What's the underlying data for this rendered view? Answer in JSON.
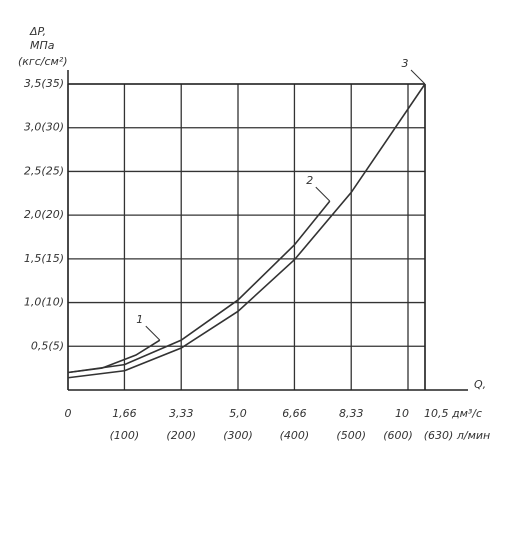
{
  "chart_data": {
    "type": "line",
    "ylabel": [
      "ΔP,",
      "МПа",
      "(кгс/см²)"
    ],
    "xlabel": "Q,",
    "xlim": [
      0,
      10.5
    ],
    "ylim": [
      0,
      3.5
    ],
    "xticks": [
      0,
      {
        "value": 1.66,
        "label": "1,66"
      },
      {
        "value": 3.33,
        "label": "3,33"
      },
      {
        "value": 5,
        "label": "5,0"
      },
      {
        "value": 6.66,
        "label": "6,66"
      },
      {
        "value": 8.33,
        "label": "8,33"
      },
      10,
      {
        "value": 10.5,
        "label": "10,5 дм³/с"
      }
    ],
    "xticks_secondary": [
      {
        "value": 1.66,
        "label": "(100)"
      },
      {
        "value": 3.33,
        "label": "(200)"
      },
      {
        "value": 5,
        "label": "(300)"
      },
      {
        "value": 6.66,
        "label": "(400)"
      },
      {
        "value": 8.33,
        "label": "(500)"
      },
      {
        "value": 10,
        "label": "(600)"
      },
      {
        "value": 10.5,
        "label": "(630) л/мин"
      }
    ],
    "yticks": [
      {
        "value": 0.5,
        "label": "0,5(5)"
      },
      {
        "value": 1,
        "label": "1,0(10)"
      },
      {
        "value": 1.5,
        "label": "1,5(15)"
      },
      {
        "value": 2,
        "label": "2,0(20)"
      },
      {
        "value": 2.5,
        "label": "2,5(25)"
      },
      {
        "value": 3,
        "label": "3,0(30)"
      },
      {
        "value": 3.5,
        "label": "3,5(35)"
      }
    ],
    "grid": true,
    "series": [
      {
        "name": "1",
        "color": "#333333",
        "x": [
          0,
          1,
          2,
          2.7
        ],
        "values": [
          0.2,
          0.25,
          0.4,
          0.57
        ]
      },
      {
        "name": "2",
        "color": "#333333",
        "x": [
          0,
          1.66,
          3.33,
          5,
          6.66,
          7.7
        ],
        "values": [
          0.2,
          0.29,
          0.57,
          1.03,
          1.66,
          2.16
        ]
      },
      {
        "name": "3",
        "color": "#333333",
        "x": [
          0,
          1.66,
          3.33,
          5,
          6.66,
          8.33,
          10.5
        ],
        "values": [
          0.14,
          0.22,
          0.48,
          0.9,
          1.49,
          2.26,
          3.5
        ]
      }
    ]
  }
}
